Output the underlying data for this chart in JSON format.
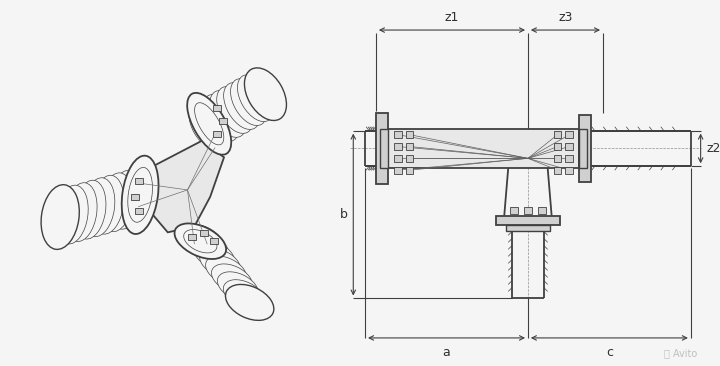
{
  "bg_color": "#f5f5f5",
  "line_color": "#404040",
  "dim_color": "#404040",
  "fill_light": "#e8e8e8",
  "fill_mid": "#d0d0d0",
  "fill_dark": "#b8b8b8",
  "text_color": "#303030",
  "fig_width": 7.2,
  "fig_height": 3.66,
  "dpi": 100,
  "labels": {
    "z1": "z1",
    "z3": "z3",
    "z2": "z2",
    "b": "b",
    "a": "a",
    "c": "c"
  }
}
